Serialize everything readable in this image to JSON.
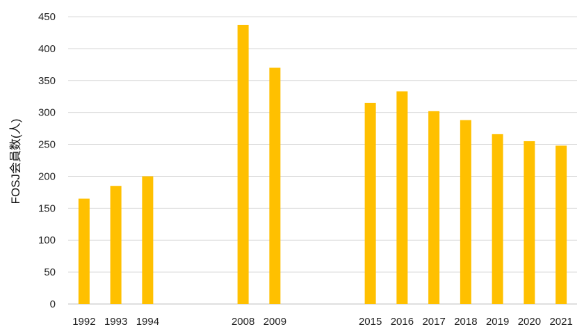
{
  "chart_data": {
    "type": "bar",
    "title": "",
    "xlabel": "",
    "ylabel": "FOSJ会員数(人)",
    "ylim": [
      0,
      450
    ],
    "yticks": [
      0,
      50,
      100,
      150,
      200,
      250,
      300,
      350,
      400,
      450
    ],
    "grid": true,
    "bar_color": "#FFC000",
    "categories": [
      "1992",
      "1993",
      "1994",
      "",
      "",
      "2008",
      "2009",
      "",
      "",
      "2015",
      "2016",
      "2017",
      "2018",
      "2019",
      "2020",
      "2021"
    ],
    "values": [
      165,
      185,
      200,
      null,
      null,
      437,
      370,
      null,
      null,
      315,
      333,
      302,
      288,
      266,
      255,
      248
    ]
  }
}
